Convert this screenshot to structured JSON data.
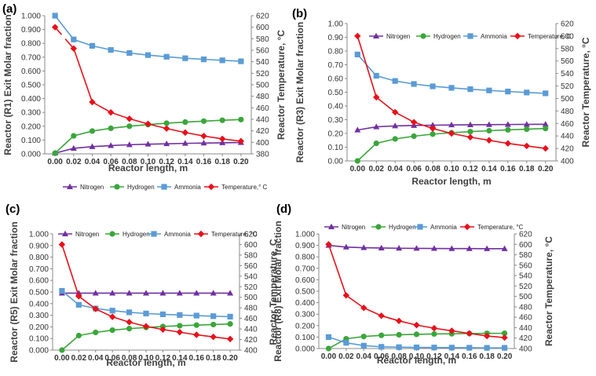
{
  "chart_data": [
    {
      "panel": "(a)",
      "type": "line",
      "xlabel": "Reactor length, m",
      "ylabel_left": "Reactor (R1) Exit Molar fraction",
      "ylabel_right": "Reactor Temperature, °C",
      "ylim_left": [
        0,
        1
      ],
      "ylim_right": [
        380,
        620
      ],
      "left_ticks": [
        "0.000",
        "0.100",
        "0.200",
        "0.300",
        "0.400",
        "0.500",
        "0.600",
        "0.700",
        "0.800",
        "0.900",
        "1.000"
      ],
      "right_ticks": [
        "380",
        "400",
        "420",
        "440",
        "460",
        "480",
        "500",
        "520",
        "540",
        "560",
        "580",
        "600",
        "620"
      ],
      "x": [
        0.0,
        0.02,
        0.04,
        0.06,
        0.08,
        0.1,
        0.12,
        0.14,
        0.16,
        0.18,
        0.2
      ],
      "x_tick_labels": [
        "0.00",
        "0.02",
        "0.04",
        "0.06",
        "0.08",
        "0.10",
        "0.12",
        "0.14",
        "0.16",
        "0.18",
        "0.20"
      ],
      "legend": [
        "Nitrogen",
        "Hydrogen",
        "Ammonia",
        "Temperature,° C"
      ],
      "series": [
        {
          "name": "Nitrogen",
          "axis": "left",
          "color": "#7030a0",
          "marker": "triangle",
          "values": [
            0.005,
            0.04,
            0.052,
            0.06,
            0.066,
            0.07,
            0.073,
            0.076,
            0.078,
            0.08,
            0.082
          ]
        },
        {
          "name": "Hydrogen",
          "axis": "left",
          "color": "#3aa63a",
          "marker": "circle",
          "values": [
            0.005,
            0.13,
            0.165,
            0.185,
            0.2,
            0.212,
            0.222,
            0.23,
            0.237,
            0.243,
            0.248
          ]
        },
        {
          "name": "Ammonia",
          "axis": "left",
          "color": "#5b9bd5",
          "marker": "square",
          "values": [
            1.0,
            0.828,
            0.782,
            0.752,
            0.73,
            0.715,
            0.703,
            0.692,
            0.684,
            0.677,
            0.67
          ]
        },
        {
          "name": "Temperature,° C",
          "axis": "right",
          "color": "#e8101a",
          "marker": "diamond",
          "values": [
            600,
            563,
            470,
            452,
            441,
            432,
            424,
            417,
            411,
            406,
            402
          ],
          "gap_after_index": 0
        }
      ]
    },
    {
      "panel": "(b)",
      "type": "line",
      "xlabel": "Reactor length, m",
      "ylabel_left": "Reactor (R3) Exit Molar fraction",
      "ylabel_right": "Reactor Temperature, °C",
      "ylim_left": [
        0,
        1
      ],
      "ylim_right": [
        400,
        620
      ],
      "left_ticks": [
        "0.00",
        "0.10",
        "0.20",
        "0.30",
        "0.40",
        "0.50",
        "0.60",
        "0.70",
        "0.80",
        "0.90",
        "1.00"
      ],
      "right_ticks": [
        "400",
        "420",
        "440",
        "460",
        "480",
        "500",
        "520",
        "540",
        "560",
        "580",
        "600",
        "620"
      ],
      "x": [
        0.0,
        0.02,
        0.04,
        0.06,
        0.08,
        0.1,
        0.12,
        0.14,
        0.16,
        0.18,
        0.2
      ],
      "x_tick_labels": [
        "0.00",
        "0.02",
        "0.04",
        "0.06",
        "0.08",
        "0.10",
        "0.12",
        "0.14",
        "0.16",
        "0.18",
        "0.20"
      ],
      "legend": [
        "Nitrogen",
        "Hydrogen",
        "Ammonia",
        "Temperature, C"
      ],
      "series": [
        {
          "name": "Nitrogen",
          "axis": "left",
          "color": "#7030a0",
          "marker": "triangle",
          "values": [
            0.225,
            0.248,
            0.255,
            0.258,
            0.26,
            0.262,
            0.263,
            0.264,
            0.265,
            0.266,
            0.267
          ]
        },
        {
          "name": "Hydrogen",
          "axis": "left",
          "color": "#3aa63a",
          "marker": "circle",
          "values": [
            0.0,
            0.128,
            0.16,
            0.18,
            0.195,
            0.205,
            0.213,
            0.22,
            0.226,
            0.231,
            0.236
          ]
        },
        {
          "name": "Ammonia",
          "axis": "left",
          "color": "#5b9bd5",
          "marker": "square",
          "values": [
            0.775,
            0.62,
            0.582,
            0.56,
            0.543,
            0.532,
            0.522,
            0.513,
            0.505,
            0.498,
            0.492
          ]
        },
        {
          "name": "Temperature, C",
          "axis": "right",
          "color": "#e8101a",
          "marker": "diamond",
          "values": [
            600,
            502,
            478,
            462,
            452,
            444,
            438,
            433,
            428,
            424,
            420
          ]
        }
      ]
    },
    {
      "panel": "(c)",
      "type": "line",
      "xlabel": "Reactor length, m",
      "ylabel_left": "Reactor (R5) Exit Molar fraction",
      "ylabel_right": "Reactor Temperature, C",
      "ylim_left": [
        0,
        1
      ],
      "ylim_right": [
        400,
        620
      ],
      "left_ticks": [
        "0.000",
        "0.100",
        "0.200",
        "0.300",
        "0.400",
        "0.500",
        "0.600",
        "0.700",
        "0.800",
        "0.900",
        "1.000"
      ],
      "right_ticks": [
        "400",
        "420",
        "440",
        "460",
        "480",
        "500",
        "520",
        "540",
        "560",
        "580",
        "600",
        "620"
      ],
      "x": [
        0.0,
        0.02,
        0.04,
        0.06,
        0.08,
        0.1,
        0.12,
        0.14,
        0.16,
        0.18,
        0.2
      ],
      "x_tick_labels": [
        "0.00",
        "0.02",
        "0.04",
        "0.06",
        "0.08",
        "0.10",
        "0.12",
        "0.14",
        "0.16",
        "0.18",
        "0.20"
      ],
      "legend": [
        "Nitrogen",
        "Hydrogen",
        "Ammonia",
        "Temperature, °C"
      ],
      "series": [
        {
          "name": "Nitrogen",
          "axis": "left",
          "color": "#7030a0",
          "marker": "triangle",
          "values": [
            0.49,
            0.49,
            0.49,
            0.49,
            0.49,
            0.49,
            0.49,
            0.49,
            0.49,
            0.49,
            0.49
          ]
        },
        {
          "name": "Hydrogen",
          "axis": "left",
          "color": "#3aa63a",
          "marker": "circle",
          "values": [
            0.0,
            0.125,
            0.152,
            0.172,
            0.185,
            0.195,
            0.203,
            0.21,
            0.215,
            0.22,
            0.225
          ]
        },
        {
          "name": "Ammonia",
          "axis": "left",
          "color": "#5b9bd5",
          "marker": "square",
          "values": [
            0.51,
            0.39,
            0.358,
            0.34,
            0.325,
            0.315,
            0.308,
            0.302,
            0.297,
            0.292,
            0.288
          ]
        },
        {
          "name": "Temperature, °C",
          "axis": "right",
          "color": "#e8101a",
          "marker": "diamond",
          "values": [
            600,
            502,
            478,
            463,
            453,
            445,
            439,
            434,
            429,
            425,
            421
          ]
        }
      ]
    },
    {
      "panel": "(d)",
      "type": "line",
      "xlabel": "Reactor length, m",
      "ylabel_left": "Reactor (R8) Exit Molar fraction",
      "ylabel_right": "Reactor Temperature, °C",
      "ylim_left": [
        0,
        1
      ],
      "ylim_right": [
        400,
        620
      ],
      "left_ticks": [
        "0.000",
        "0.100",
        "0.200",
        "0.300",
        "0.400",
        "0.500",
        "0.600",
        "0.700",
        "0.800",
        "0.900",
        "1.000"
      ],
      "right_ticks": [
        "400",
        "420",
        "440",
        "460",
        "480",
        "500",
        "520",
        "540",
        "560",
        "580",
        "600",
        "620"
      ],
      "x": [
        0.0,
        0.02,
        0.04,
        0.06,
        0.08,
        0.1,
        0.12,
        0.14,
        0.16,
        0.18,
        0.2
      ],
      "x_tick_labels": [
        "0.00",
        "0.02",
        "0.04",
        "0.06",
        "0.08",
        "0.10",
        "0.12",
        "0.14",
        "0.16",
        "0.18",
        "0.20"
      ],
      "legend": [
        "Nitrogen",
        "Hydrogen",
        "Ammonia",
        "Temperature, °C"
      ],
      "series": [
        {
          "name": "Nitrogen",
          "axis": "left",
          "color": "#7030a0",
          "marker": "triangle",
          "values": [
            0.9,
            0.885,
            0.88,
            0.877,
            0.875,
            0.874,
            0.873,
            0.872,
            0.872,
            0.871,
            0.871
          ]
        },
        {
          "name": "Hydrogen",
          "axis": "left",
          "color": "#3aa63a",
          "marker": "circle",
          "values": [
            0.0,
            0.085,
            0.105,
            0.115,
            0.12,
            0.124,
            0.127,
            0.129,
            0.131,
            0.132,
            0.133
          ]
        },
        {
          "name": "Ammonia",
          "axis": "left",
          "color": "#5b9bd5",
          "marker": "square",
          "values": [
            0.1,
            0.05,
            0.025,
            0.015,
            0.012,
            0.01,
            0.009,
            0.008,
            0.007,
            0.006,
            0.006
          ]
        },
        {
          "name": "Temperature, °C",
          "axis": "right",
          "color": "#e8101a",
          "marker": "diamond",
          "values": [
            600,
            502,
            478,
            463,
            453,
            445,
            439,
            434,
            429,
            424,
            421
          ]
        }
      ]
    }
  ]
}
